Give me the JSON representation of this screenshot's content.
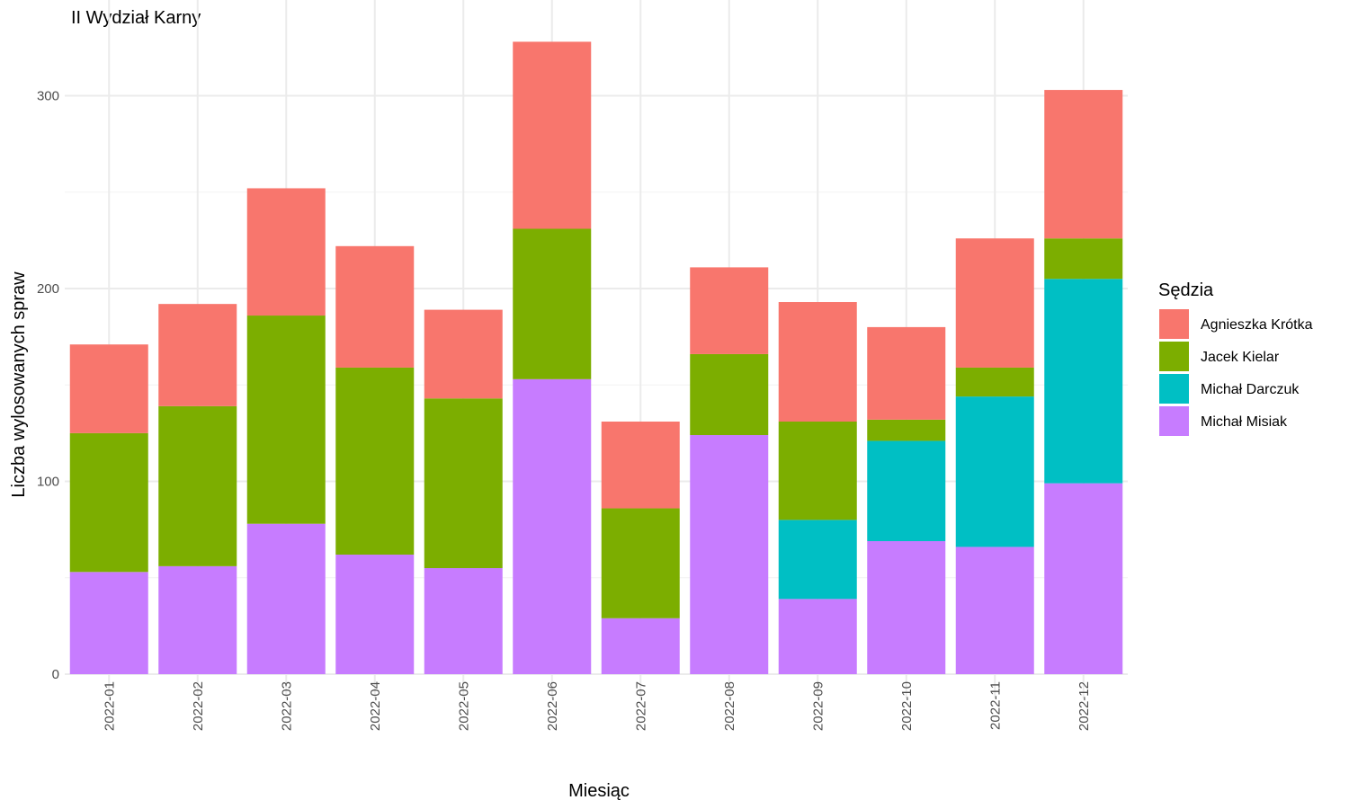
{
  "chart_data": {
    "type": "bar",
    "stacked": true,
    "title": "II Wydział Karny",
    "xlabel": "Miesiąc",
    "ylabel": "Liczba wylosowanych spraw",
    "ylim": [
      0,
      330
    ],
    "yticks": [
      0,
      100,
      200,
      300
    ],
    "grid": true,
    "legend_title": "Sędzia",
    "legend_position": "right",
    "categories": [
      "2022-01",
      "2022-02",
      "2022-03",
      "2022-04",
      "2022-05",
      "2022-06",
      "2022-07",
      "2022-08",
      "2022-09",
      "2022-10",
      "2022-11",
      "2022-12"
    ],
    "series": [
      {
        "name": "Michał Misiak",
        "color": "#C77CFF",
        "values": [
          53,
          56,
          78,
          62,
          55,
          153,
          29,
          124,
          39,
          69,
          66,
          99
        ]
      },
      {
        "name": "Michał Darczuk",
        "color": "#00BFC4",
        "values": [
          0,
          0,
          0,
          0,
          0,
          0,
          0,
          0,
          41,
          52,
          78,
          106
        ]
      },
      {
        "name": "Jacek Kielar",
        "color": "#7CAE00",
        "values": [
          72,
          83,
          108,
          97,
          88,
          78,
          57,
          42,
          51,
          11,
          15,
          21
        ]
      },
      {
        "name": "Agnieszka Krótka",
        "color": "#F8766D",
        "values": [
          46,
          53,
          66,
          63,
          46,
          97,
          45,
          45,
          62,
          48,
          67,
          77
        ]
      }
    ],
    "legend_order": [
      "Agnieszka Krótka",
      "Jacek Kielar",
      "Michał Darczuk",
      "Michał Misiak"
    ]
  }
}
